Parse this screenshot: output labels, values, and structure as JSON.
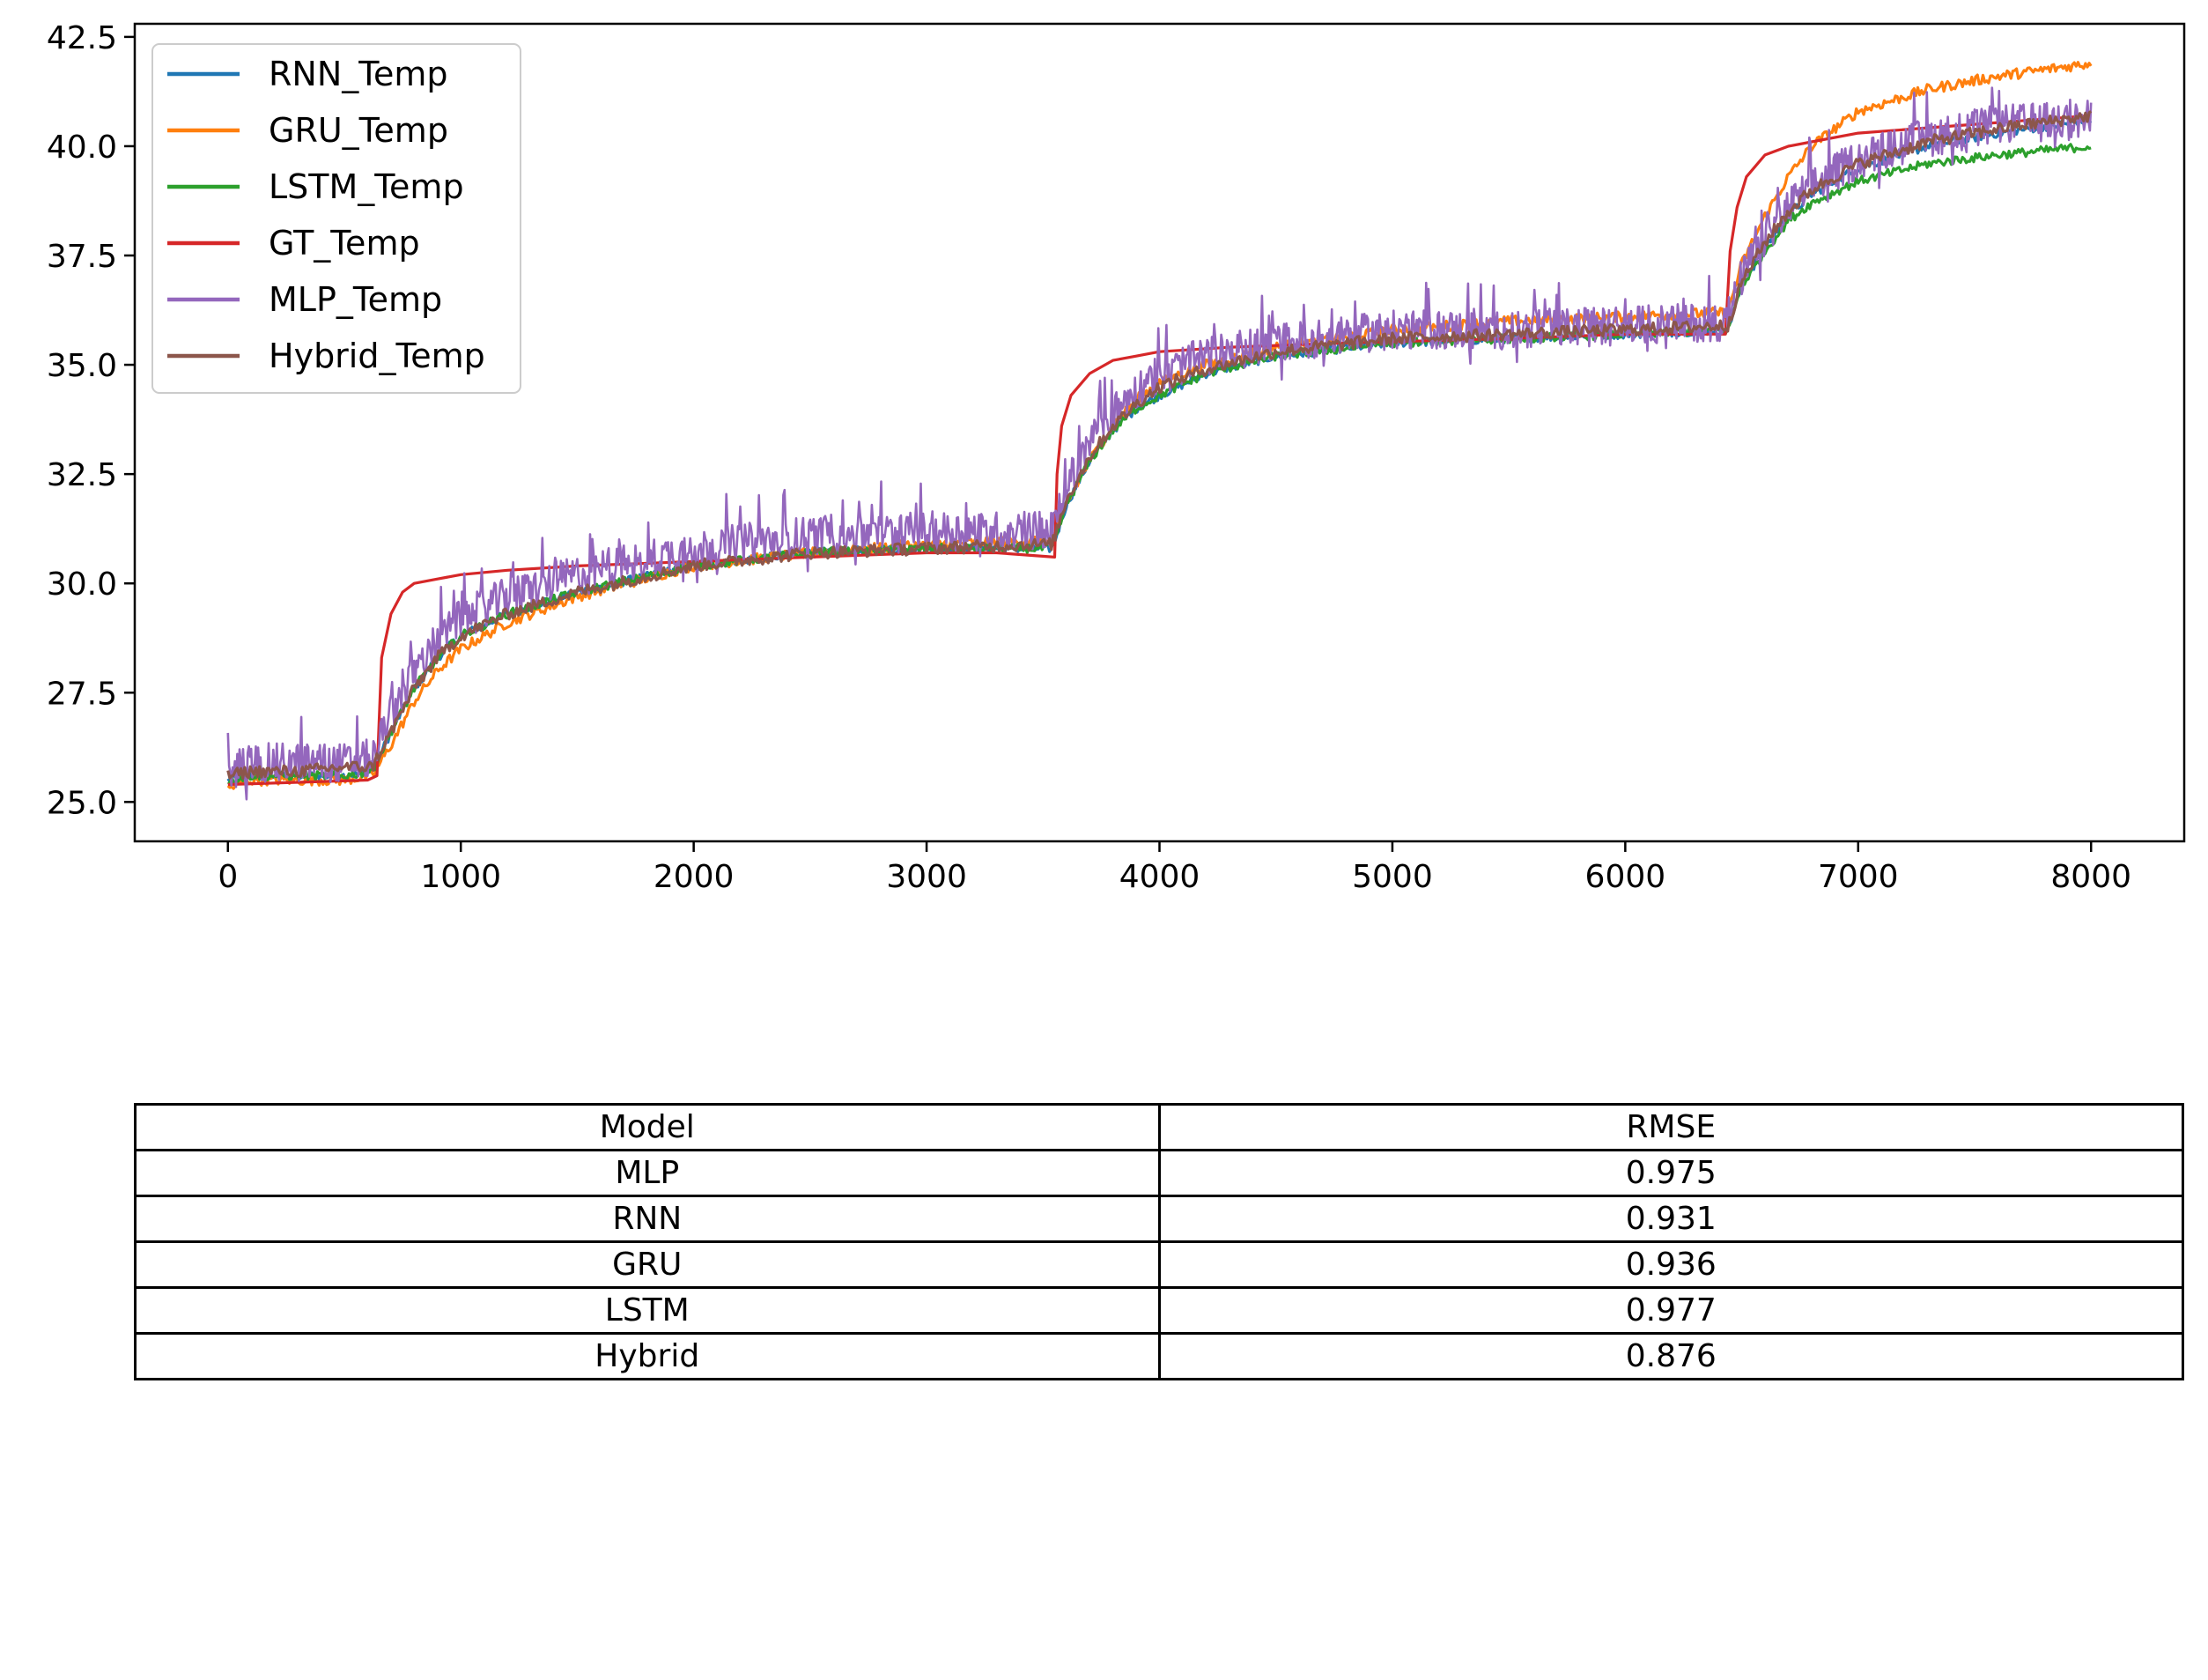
{
  "chart_data": [
    {
      "type": "line",
      "title": "",
      "xlabel": "",
      "ylabel": "",
      "xlim": [
        -400,
        8400
      ],
      "ylim": [
        24.1,
        42.8
      ],
      "xticks": [
        0,
        1000,
        2000,
        3000,
        4000,
        5000,
        6000,
        7000,
        8000
      ],
      "xtick_labels": [
        "0",
        "1000",
        "2000",
        "3000",
        "4000",
        "5000",
        "6000",
        "7000",
        "8000"
      ],
      "yticks": [
        25.0,
        27.5,
        30.0,
        32.5,
        35.0,
        37.5,
        40.0,
        42.5
      ],
      "ytick_labels": [
        "25.0",
        "27.5",
        "30.0",
        "32.5",
        "35.0",
        "37.5",
        "40.0",
        "42.5"
      ],
      "grid": false,
      "legend_position": "top-left",
      "series": [
        {
          "name": "RNN_Temp",
          "color": "#1f77b4",
          "x": [
            0,
            100,
            300,
            500,
            620,
            700,
            800,
            900,
            1000,
            1200,
            1500,
            2000,
            2500,
            3000,
            3540,
            3600,
            3700,
            3800,
            3900,
            4000,
            4200,
            4500,
            5000,
            5500,
            6000,
            6440,
            6500,
            6600,
            6700,
            6800,
            7000,
            7300,
            7600,
            8000
          ],
          "y": [
            25.5,
            25.6,
            25.6,
            25.6,
            25.7,
            26.6,
            27.6,
            28.3,
            28.8,
            29.3,
            29.8,
            30.4,
            30.7,
            30.8,
            30.8,
            31.8,
            32.8,
            33.5,
            34.0,
            34.3,
            34.8,
            35.2,
            35.5,
            35.6,
            35.7,
            35.8,
            36.8,
            37.7,
            38.4,
            38.9,
            39.5,
            40.0,
            40.3,
            40.6
          ]
        },
        {
          "name": "GRU_Temp",
          "color": "#ff7f0e",
          "x": [
            0,
            100,
            300,
            500,
            620,
            700,
            800,
            900,
            1000,
            1200,
            1500,
            2000,
            2500,
            3000,
            3540,
            3600,
            3700,
            3800,
            3900,
            4000,
            4200,
            4500,
            5000,
            5500,
            6000,
            6440,
            6500,
            6600,
            6700,
            6800,
            7000,
            7300,
            7600,
            8000
          ],
          "y": [
            25.3,
            25.5,
            25.5,
            25.5,
            25.6,
            26.3,
            27.3,
            28.0,
            28.5,
            29.1,
            29.7,
            30.4,
            30.7,
            30.9,
            31.0,
            31.8,
            32.8,
            33.6,
            34.2,
            34.6,
            35.0,
            35.4,
            35.8,
            36.0,
            36.1,
            36.2,
            37.3,
            38.4,
            39.3,
            40.0,
            40.8,
            41.3,
            41.6,
            41.9
          ]
        },
        {
          "name": "LSTM_Temp",
          "color": "#2ca02c",
          "x": [
            0,
            100,
            300,
            500,
            620,
            700,
            800,
            900,
            1000,
            1200,
            1500,
            2000,
            2500,
            3000,
            3540,
            3600,
            3700,
            3800,
            3900,
            4000,
            4200,
            4500,
            5000,
            5500,
            6000,
            6440,
            6500,
            6600,
            6700,
            6800,
            7000,
            7300,
            7600,
            8000
          ],
          "y": [
            25.5,
            25.6,
            25.6,
            25.6,
            25.7,
            26.6,
            27.6,
            28.3,
            28.8,
            29.3,
            29.8,
            30.4,
            30.7,
            30.8,
            30.8,
            31.8,
            32.8,
            33.5,
            34.0,
            34.3,
            34.8,
            35.2,
            35.5,
            35.6,
            35.7,
            35.8,
            36.8,
            37.6,
            38.3,
            38.7,
            39.2,
            39.6,
            39.8,
            40.0
          ]
        },
        {
          "name": "GT_Temp",
          "color": "#d62728",
          "x": [
            0,
            300,
            600,
            640,
            660,
            700,
            750,
            800,
            900,
            1000,
            1200,
            1500,
            2000,
            2500,
            3000,
            3300,
            3550,
            3560,
            3580,
            3620,
            3700,
            3800,
            3900,
            4000,
            4300,
            4800,
            5500,
            6000,
            6430,
            6450,
            6480,
            6520,
            6600,
            6700,
            6800,
            7000,
            7500,
            8000
          ],
          "y": [
            25.4,
            25.45,
            25.5,
            25.6,
            28.3,
            29.3,
            29.8,
            30.0,
            30.1,
            30.2,
            30.3,
            30.4,
            30.5,
            30.6,
            30.7,
            30.7,
            30.6,
            32.5,
            33.6,
            34.3,
            34.8,
            35.1,
            35.2,
            35.3,
            35.4,
            35.5,
            35.6,
            35.7,
            35.7,
            37.6,
            38.6,
            39.3,
            39.8,
            40.0,
            40.1,
            40.3,
            40.5,
            40.7
          ]
        },
        {
          "name": "MLP_Temp",
          "color": "#9467bd",
          "x": [
            0,
            100,
            300,
            500,
            620,
            700,
            800,
            900,
            1000,
            1200,
            1500,
            2000,
            2500,
            3000,
            3540,
            3600,
            3700,
            3800,
            3900,
            4000,
            4200,
            4500,
            5000,
            5500,
            6000,
            6440,
            6500,
            6600,
            6700,
            6800,
            7000,
            7300,
            7600,
            8000
          ],
          "y": [
            25.7,
            25.9,
            25.9,
            25.9,
            26.0,
            27.0,
            28.0,
            28.7,
            29.2,
            29.7,
            30.2,
            30.8,
            31.1,
            31.2,
            31.2,
            32.2,
            33.2,
            33.9,
            34.4,
            34.8,
            35.2,
            35.5,
            35.8,
            35.8,
            35.9,
            36.0,
            37.0,
            37.9,
            38.6,
            39.1,
            39.7,
            40.2,
            40.5,
            40.6
          ]
        },
        {
          "name": "Hybrid_Temp",
          "color": "#8c564b",
          "x": [
            0,
            100,
            300,
            500,
            620,
            700,
            800,
            900,
            1000,
            1200,
            1500,
            2000,
            2500,
            3000,
            3540,
            3600,
            3700,
            3800,
            3900,
            4000,
            4200,
            4500,
            5000,
            5500,
            6000,
            6440,
            6500,
            6600,
            6700,
            6800,
            7000,
            7300,
            7600,
            8000
          ],
          "y": [
            25.6,
            25.7,
            25.7,
            25.8,
            25.8,
            26.6,
            27.6,
            28.3,
            28.8,
            29.3,
            29.8,
            30.4,
            30.7,
            30.8,
            30.9,
            31.9,
            32.9,
            33.6,
            34.1,
            34.5,
            34.9,
            35.3,
            35.6,
            35.7,
            35.8,
            35.9,
            36.9,
            37.8,
            38.5,
            39.0,
            39.6,
            40.1,
            40.4,
            40.7
          ]
        }
      ]
    },
    {
      "type": "table",
      "columns": [
        "Model",
        "RMSE"
      ],
      "rows": [
        [
          "MLP",
          "0.975"
        ],
        [
          "RNN",
          "0.931"
        ],
        [
          "GRU",
          "0.936"
        ],
        [
          "LSTM",
          "0.977"
        ],
        [
          "Hybrid",
          "0.876"
        ]
      ]
    }
  ]
}
